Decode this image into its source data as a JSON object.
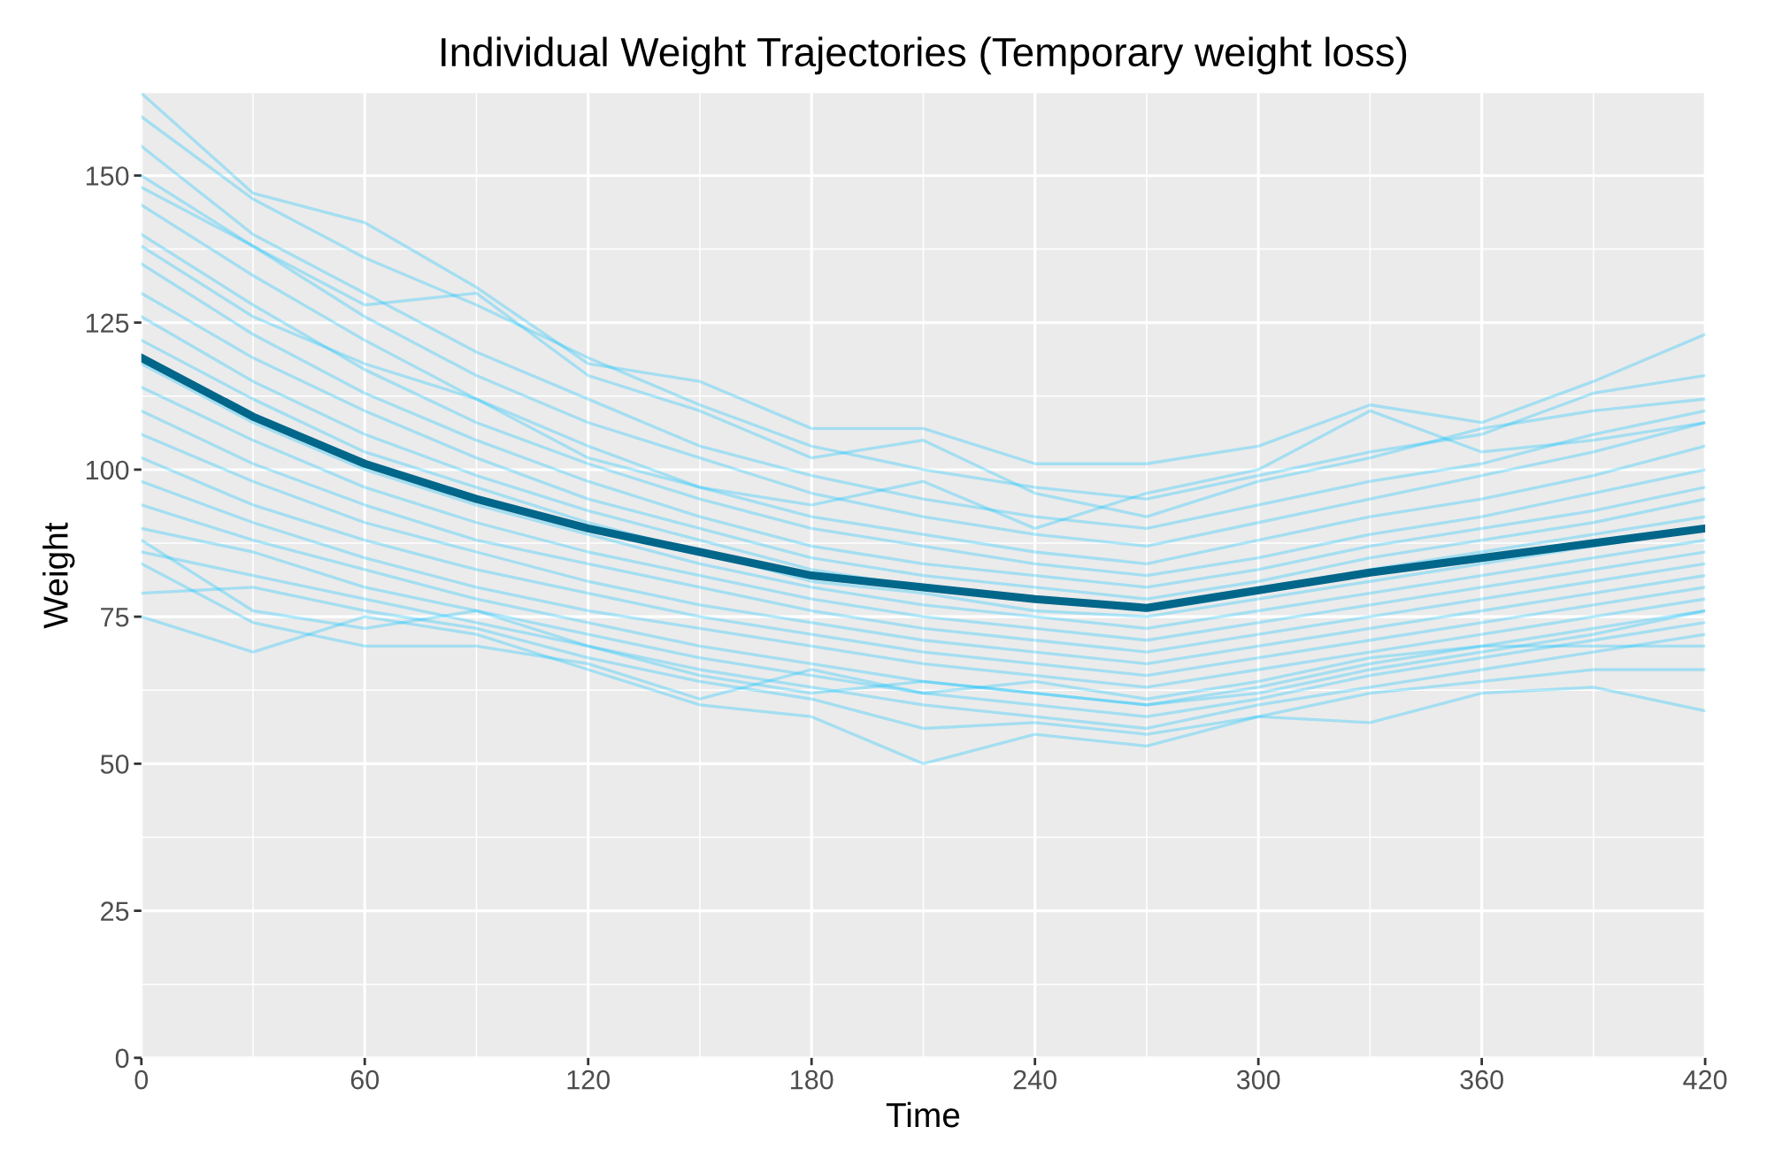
{
  "chart_data": {
    "type": "line",
    "title": "Individual Weight Trajectories (Temporary weight loss)",
    "xlabel": "Time",
    "ylabel": "Weight",
    "x": [
      0,
      30,
      60,
      90,
      120,
      150,
      180,
      210,
      240,
      270,
      300,
      330,
      360,
      390,
      420
    ],
    "xlim": [
      0,
      420
    ],
    "xticks": [
      0,
      60,
      120,
      180,
      240,
      300,
      360,
      420
    ],
    "ylim": [
      0,
      164
    ],
    "yticks": [
      0,
      25,
      50,
      75,
      100,
      125,
      150
    ],
    "grid": true,
    "legend": false,
    "marker": "none",
    "line_style": "solid",
    "series": [
      {
        "color": "#00bfff",
        "values": [
          164,
          147,
          142,
          131,
          118,
          115,
          107,
          107,
          101,
          101,
          104,
          111,
          108,
          115,
          123
        ]
      },
      {
        "color": "#00bfff",
        "values": [
          160,
          146,
          136,
          128,
          119,
          111,
          104,
          100,
          97,
          95,
          99,
          103,
          106,
          113,
          116
        ]
      },
      {
        "color": "#00bfff",
        "values": [
          155,
          140,
          130,
          120,
          112,
          104,
          99,
          95,
          92,
          90,
          94,
          98,
          101,
          106,
          110
        ]
      },
      {
        "color": "#00bfff",
        "values": [
          150,
          138,
          126,
          116,
          108,
          102,
          96,
          92,
          89,
          87,
          91,
          95,
          99,
          103,
          108
        ]
      },
      {
        "color": "#00bfff",
        "values": [
          145,
          133,
          122,
          112,
          104,
          97,
          92,
          89,
          86,
          84,
          88,
          92,
          95,
          99,
          104
        ]
      },
      {
        "color": "#00bfff",
        "values": [
          140,
          128,
          117,
          108,
          101,
          95,
          90,
          87,
          84,
          82,
          85,
          89,
          92,
          96,
          100
        ]
      },
      {
        "color": "#00bfff",
        "values": [
          135,
          123,
          113,
          105,
          98,
          92,
          87,
          84,
          82,
          80,
          83,
          87,
          90,
          93,
          97
        ]
      },
      {
        "color": "#00bfff",
        "values": [
          130,
          119,
          110,
          102,
          95,
          90,
          85,
          82,
          80,
          78,
          81,
          85,
          88,
          91,
          95
        ]
      },
      {
        "color": "#00bfff",
        "values": [
          126,
          115,
          106,
          99,
          93,
          88,
          83,
          80,
          78,
          76,
          79,
          83,
          86,
          89,
          92
        ]
      },
      {
        "color": "#00bfff",
        "values": [
          122,
          112,
          103,
          97,
          91,
          86,
          81,
          79,
          76,
          75,
          78,
          81,
          84,
          87,
          90
        ]
      },
      {
        "color": "#00bfff",
        "values": [
          118,
          108,
          100,
          94,
          89,
          84,
          80,
          77,
          75,
          73,
          76,
          79,
          82,
          85,
          88
        ]
      },
      {
        "color": "#00bfff",
        "values": [
          114,
          105,
          97,
          91,
          86,
          82,
          78,
          75,
          73,
          71,
          74,
          77,
          80,
          83,
          86
        ]
      },
      {
        "color": "#00bfff",
        "values": [
          110,
          101,
          94,
          88,
          84,
          80,
          76,
          73,
          71,
          69,
          72,
          75,
          78,
          81,
          84
        ]
      },
      {
        "color": "#00bfff",
        "values": [
          106,
          98,
          91,
          86,
          81,
          77,
          74,
          71,
          69,
          67,
          70,
          73,
          76,
          79,
          82
        ]
      },
      {
        "color": "#00bfff",
        "values": [
          102,
          94,
          88,
          83,
          79,
          75,
          72,
          69,
          67,
          65,
          68,
          71,
          74,
          77,
          80
        ]
      },
      {
        "color": "#00bfff",
        "values": [
          98,
          91,
          85,
          80,
          76,
          73,
          70,
          67,
          65,
          63,
          66,
          69,
          72,
          75,
          78
        ]
      },
      {
        "color": "#00bfff",
        "values": [
          94,
          88,
          83,
          78,
          74,
          70,
          67,
          64,
          62,
          60,
          63,
          67,
          70,
          73,
          76
        ]
      },
      {
        "color": "#00bfff",
        "values": [
          90,
          86,
          80,
          76,
          72,
          68,
          65,
          62,
          60,
          58,
          61,
          65,
          68,
          71,
          74
        ]
      },
      {
        "color": "#00bfff",
        "values": [
          86,
          82,
          78,
          74,
          70,
          66,
          63,
          60,
          58,
          56,
          60,
          63,
          66,
          69,
          72
        ]
      },
      {
        "color": "#00bfff",
        "values": [
          79,
          80,
          76,
          73,
          68,
          64,
          61,
          56,
          57,
          55,
          58,
          62,
          64,
          66,
          66
        ]
      },
      {
        "color": "#00bfff",
        "values": [
          75,
          69,
          75,
          72,
          66,
          60,
          58,
          50,
          55,
          53,
          58,
          57,
          62,
          63,
          59
        ]
      },
      {
        "color": "#00bfff",
        "values": [
          84,
          74,
          70,
          70,
          67,
          61,
          66,
          62,
          64,
          61,
          64,
          68,
          70,
          70,
          70
        ]
      },
      {
        "color": "#00bfff",
        "values": [
          88,
          76,
          73,
          76,
          70,
          65,
          62,
          64,
          62,
          60,
          62,
          66,
          69,
          72,
          76
        ]
      },
      {
        "color": "#00bfff",
        "values": [
          138,
          126,
          118,
          112,
          102,
          97,
          94,
          98,
          90,
          96,
          100,
          110,
          103,
          105,
          108
        ]
      },
      {
        "color": "#00bfff",
        "values": [
          148,
          138,
          128,
          130,
          116,
          110,
          102,
          105,
          96,
          92,
          98,
          102,
          107,
          110,
          112
        ]
      },
      {
        "color": "#00668a",
        "values": [
          119,
          109,
          101,
          95,
          90,
          86,
          82,
          80,
          78,
          76.5,
          79.5,
          82.5,
          85,
          87.5,
          90
        ]
      }
    ]
  }
}
